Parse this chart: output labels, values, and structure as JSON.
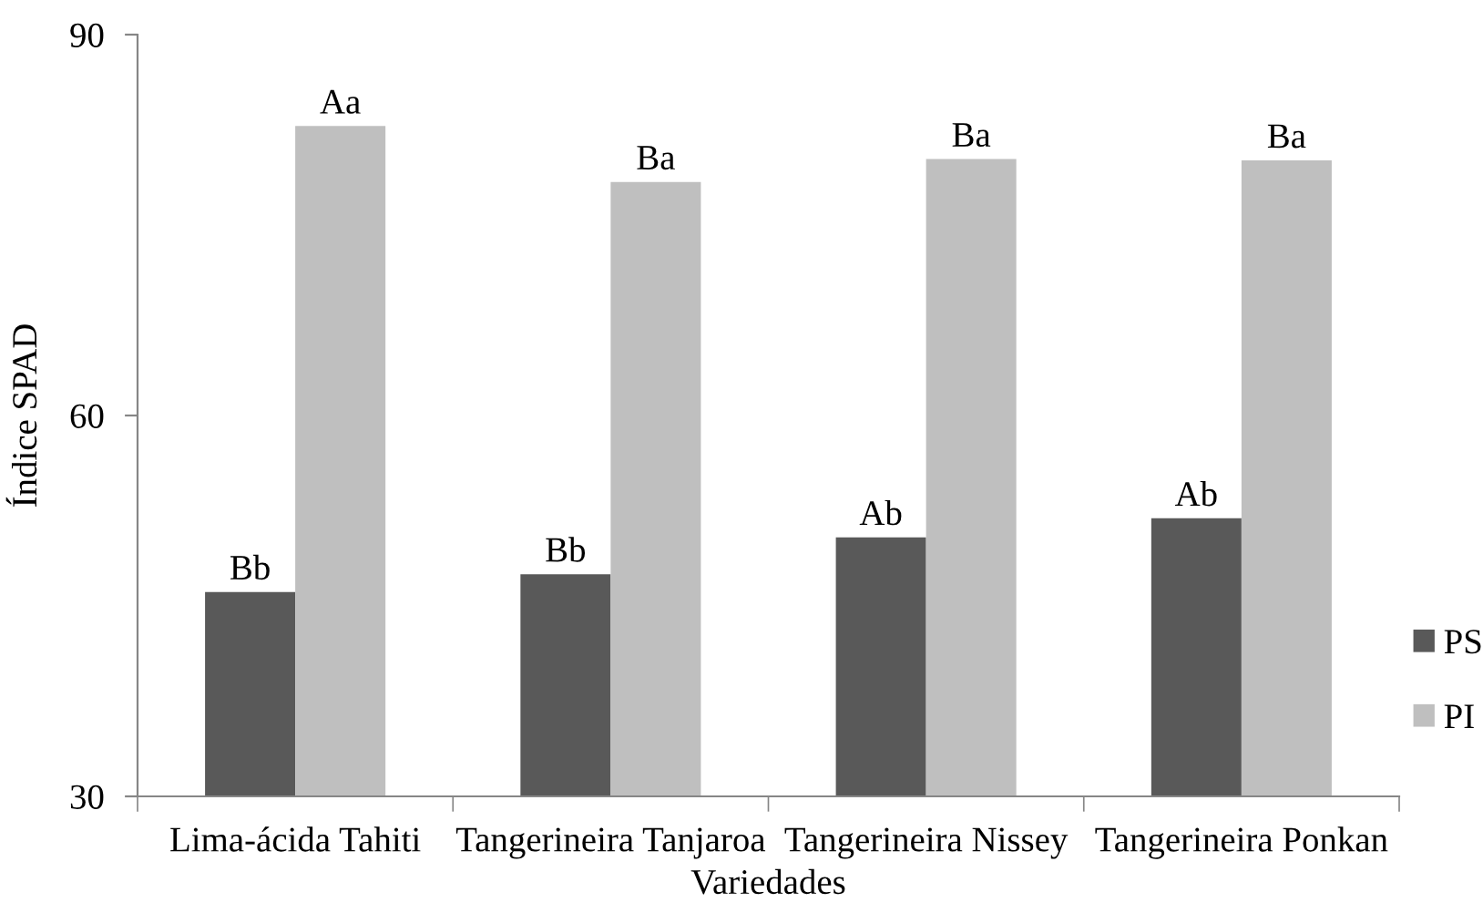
{
  "chart_data": {
    "type": "bar",
    "xlabel": "Variedades",
    "ylabel": "Índice SPAD",
    "categories": [
      "Lima-ácida Tahiti",
      "Tangerineira Tanjaroa",
      "Tangerineira Nissey",
      "Tangerineira Ponkan"
    ],
    "series": [
      {
        "name": "PS",
        "color": "#595959",
        "values": [
          46.1,
          47.5,
          50.4,
          51.9
        ],
        "value_labels": [
          "Bb",
          "Bb",
          "Ab",
          "Ab"
        ]
      },
      {
        "name": "PI",
        "color": "#bfbfbf",
        "values": [
          82.8,
          78.4,
          80.2,
          80.1
        ],
        "value_labels": [
          "Aa",
          "Ba",
          "Ba",
          "Ba"
        ]
      }
    ],
    "ylim": [
      30,
      90
    ],
    "yticks": [
      30,
      60,
      90
    ],
    "grid": false,
    "legend": "right"
  }
}
